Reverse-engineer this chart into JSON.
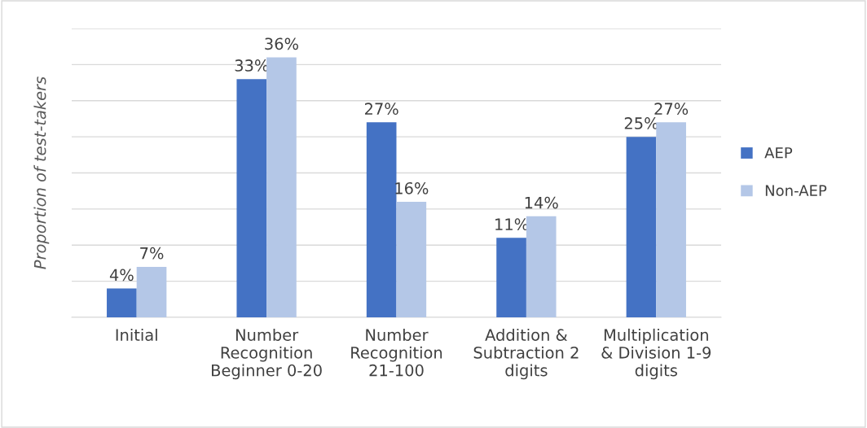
{
  "chart_data": {
    "type": "bar",
    "ylabel": "Proportion of test-takers",
    "categories": [
      "Initial",
      "Number\nRecognition\nBeginner 0-20",
      "Number\nRecognition\n21-100",
      "Addition &\nSubtraction 2\ndigits",
      "Multiplication\n& Division 1-9\ndigits"
    ],
    "series": [
      {
        "name": "AEP",
        "color": "#4472c4",
        "values": [
          4,
          33,
          27,
          11,
          25
        ],
        "value_labels": [
          "4%",
          "33%",
          "27%",
          "11%",
          "25%"
        ]
      },
      {
        "name": "Non-AEP",
        "color": "#b4c7e7",
        "values": [
          7,
          36,
          16,
          14,
          27
        ],
        "value_labels": [
          "7%",
          "36%",
          "16%",
          "14%",
          "27%"
        ]
      }
    ],
    "ylim": [
      0,
      40
    ],
    "yticks": [
      {
        "value": 0,
        "label": null
      },
      {
        "value": 5,
        "label": null
      },
      {
        "value": 10,
        "label": null
      },
      {
        "value": 15,
        "label": null
      },
      {
        "value": 20,
        "label": null
      },
      {
        "value": 25,
        "label": null
      },
      {
        "value": 30,
        "label": null
      },
      {
        "value": 35,
        "label": null
      },
      {
        "value": 40,
        "label": null
      }
    ],
    "grid": "y",
    "legend": "right",
    "tick_labels": "x"
  }
}
